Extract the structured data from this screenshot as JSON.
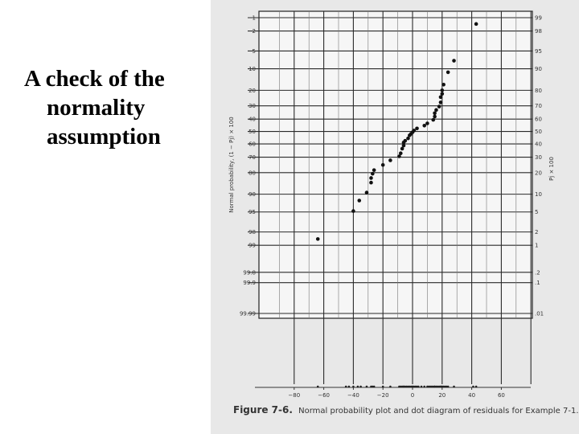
{
  "slide": {
    "title_lines": [
      "A check of the",
      "normality",
      "assumption"
    ]
  },
  "caption": {
    "figure": "Figure 7-6.",
    "text": "Normal probability plot and dot diagram of residuals for Example 7-1."
  },
  "chart_data": {
    "type": "scatter",
    "title": "",
    "xlabel": "",
    "ylabel_left": "Normal probability, (1 − Pj) × 100",
    "ylabel_right": "Pj × 100",
    "x_ticks": [
      -80,
      -60,
      -40,
      -20,
      0,
      20,
      40,
      60
    ],
    "x_tick_labels": [
      "−80",
      "−60",
      "−40",
      "−20",
      "0",
      "20",
      "40",
      "60"
    ],
    "left_prob_ticks": [
      1,
      2,
      5,
      10,
      20,
      30,
      40,
      50,
      60,
      70,
      80,
      90,
      95,
      98,
      99,
      99.8,
      99.9,
      99.99
    ],
    "left_tick_labels": [
      "1",
      "2",
      "5",
      "10",
      "20",
      "30",
      "40",
      "50",
      "60",
      "70",
      "80",
      "90",
      "95",
      "98",
      "99",
      "99.8",
      "99.9",
      "99.99"
    ],
    "right_tick_labels": [
      "99",
      "98",
      "95",
      "90",
      "80",
      "70",
      "60",
      "50",
      "40",
      "30",
      "20",
      "10",
      "5",
      "2",
      "1",
      ".2",
      ".1",
      ".01"
    ],
    "xlim": [
      -100,
      80
    ],
    "grid": true,
    "residuals": [
      -64,
      -40,
      -36,
      -31,
      -28,
      -28,
      -27,
      -26,
      -20,
      -15,
      -9,
      -8,
      -7,
      -6,
      -6,
      -5,
      -3,
      -2,
      -1,
      0,
      1,
      3,
      8,
      10,
      14,
      15,
      15,
      16,
      18,
      19,
      19,
      20,
      20,
      21,
      24,
      28,
      43
    ],
    "normal_probability_pct": [
      98.6,
      94.8,
      92.1,
      89.4,
      85.2,
      82.9,
      80.6,
      78.5,
      75.3,
      72.2,
      69.4,
      67.2,
      63.7,
      61.3,
      58.9,
      57.5,
      55.6,
      53.1,
      51.9,
      50.6,
      49.2,
      47.5,
      45.2,
      43.4,
      40.6,
      38.0,
      35.4,
      33.0,
      30.5,
      27.6,
      24.1,
      22.1,
      20.0,
      16.9,
      11.3,
      7.4,
      1.4
    ],
    "dot_diagram_x": [
      -64,
      -45,
      -43,
      -40,
      -37,
      -35,
      -31,
      -28,
      -27,
      -26,
      -20,
      -15,
      -9,
      -8,
      -7,
      -6,
      -6,
      -5,
      -4,
      -3,
      -2,
      -1,
      0,
      0,
      1,
      2,
      3,
      4,
      6,
      8,
      10,
      11,
      12,
      13,
      14,
      15,
      15,
      16,
      17,
      18,
      19,
      19,
      20,
      20,
      21,
      22,
      23,
      24,
      28,
      41,
      43
    ]
  }
}
